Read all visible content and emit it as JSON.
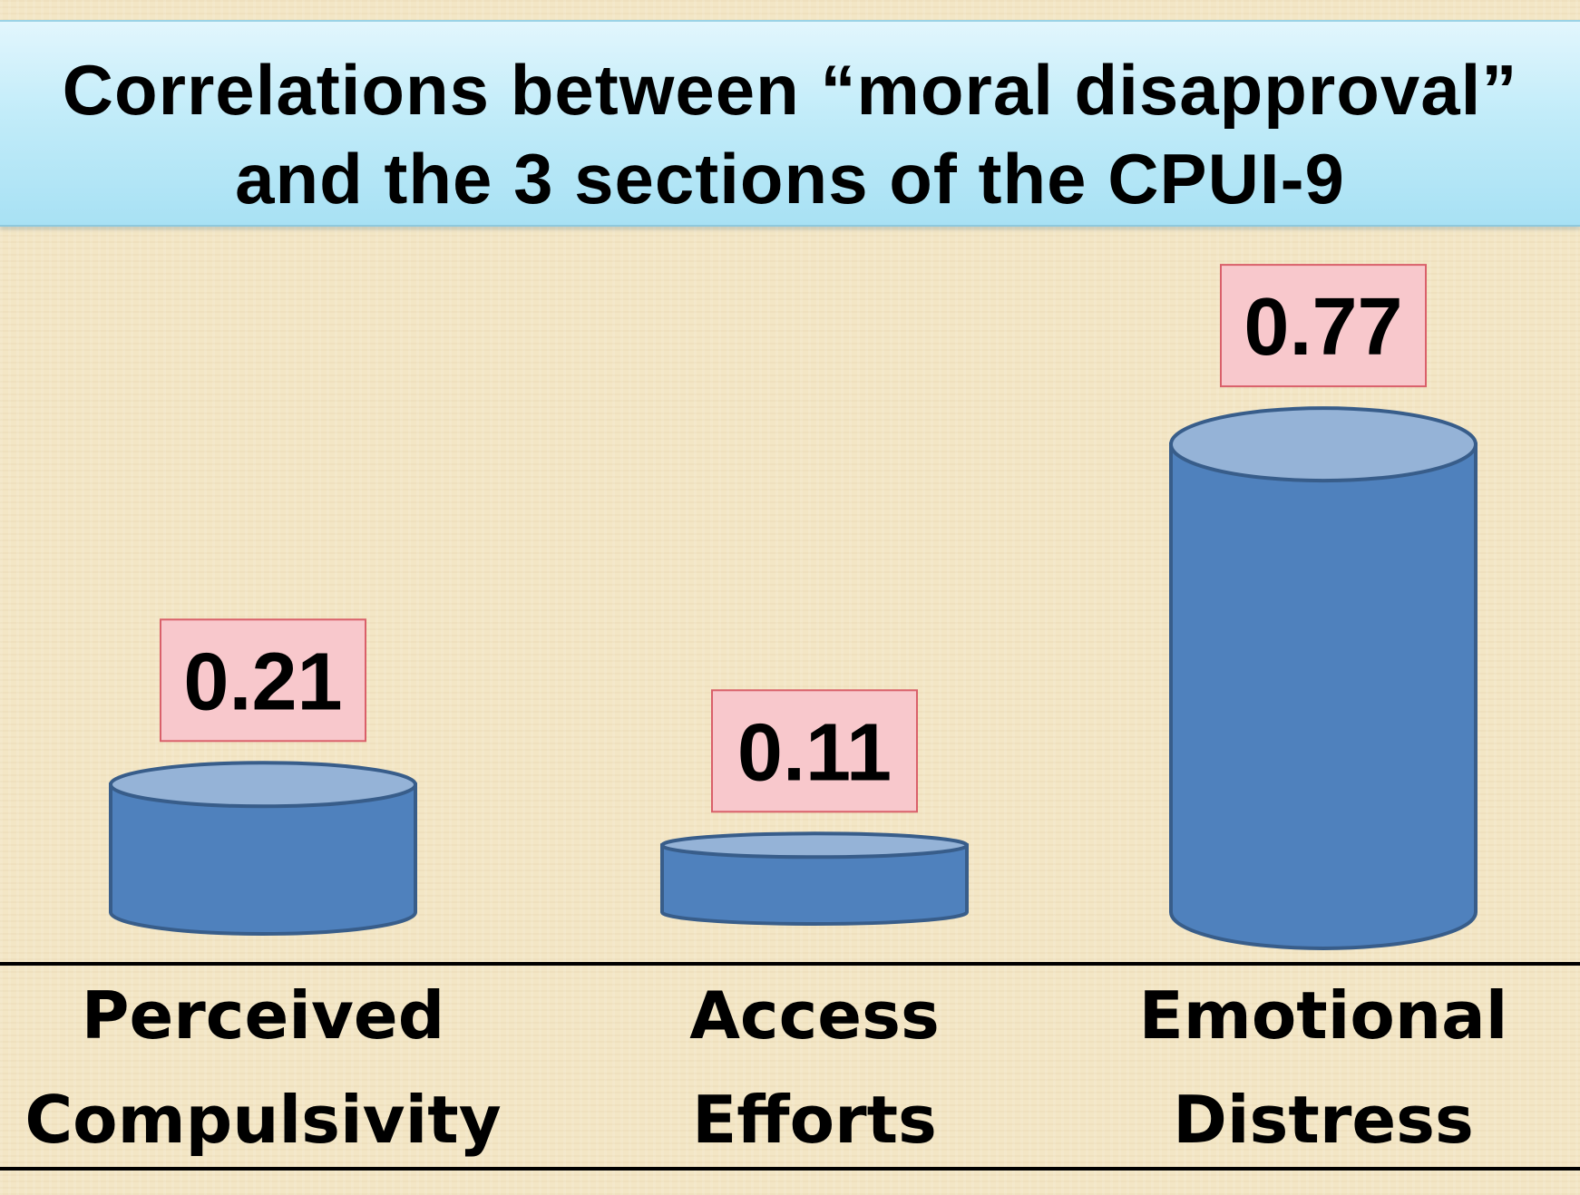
{
  "title": {
    "line1": "Correlations between “moral disapproval”",
    "line2": "and the 3 sections of the CPUI-9"
  },
  "colors": {
    "cylinder_body": "#4f81bd",
    "cylinder_top": "#95b3d7",
    "cylinder_outline": "#385d8a",
    "label_box_fill": "#f8c8cc",
    "label_box_border": "#d9606a"
  },
  "chart_data": {
    "type": "bar",
    "style": "3d-cylinder",
    "title": "Correlations between “moral disapproval” and the 3 sections of the CPUI-9",
    "categories": [
      [
        "Perceived",
        "Compulsivity"
      ],
      [
        "Access",
        "Efforts"
      ],
      [
        "Emotional",
        "Distress"
      ]
    ],
    "values": [
      0.21,
      0.11,
      0.77
    ],
    "value_labels": [
      "0.21",
      "0.11",
      "0.77"
    ],
    "xlabel": "",
    "ylabel": "",
    "ylim": [
      0,
      0.8
    ],
    "grid": false,
    "legend": "none"
  }
}
